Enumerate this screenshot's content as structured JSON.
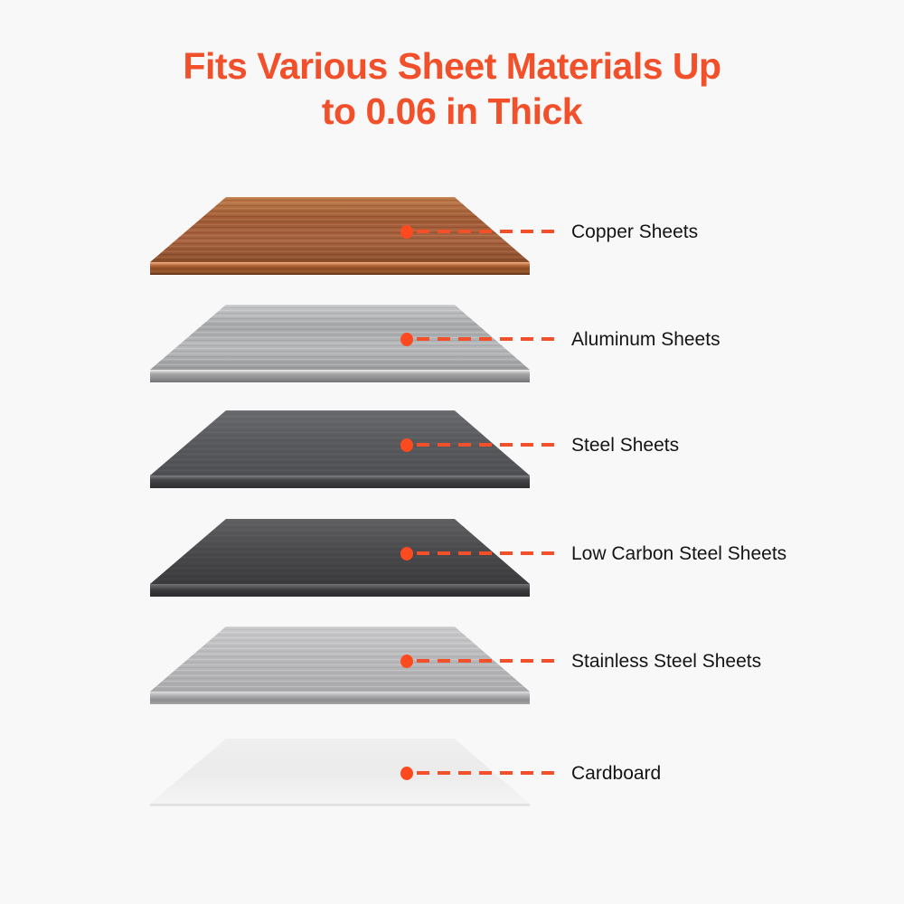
{
  "page": {
    "background": "#f8f8f8"
  },
  "title": {
    "line1": "Fits Various Sheet Materials Up",
    "line2": "to 0.06 in Thick",
    "full_text": "Fits Various Sheet Materials Up to 0.06 in Thick",
    "color": "#f1502b"
  },
  "callout": {
    "dot_color": "#ff4a1f",
    "line_color": "#f1502b",
    "label_color": "#141414"
  },
  "materials": [
    {
      "id": "copper-sheets",
      "label": "Copper Sheets",
      "face_colors": [
        "#c07b4a",
        "#a25d36",
        "#a86340",
        "#8c4e2a"
      ],
      "side_colors": [
        "#f5b285",
        "#b76b3a",
        "#8a4a24",
        "#9a5c30",
        "#5c2f15"
      ],
      "brushed_hi": 0.1,
      "brushed_lo": 0.14
    },
    {
      "id": "aluminum-sheets",
      "label": "Aluminum Sheets",
      "face_colors": [
        "#c8c9cb",
        "#a7a8aa",
        "#b8b9bb",
        "#9b9c9e"
      ],
      "side_colors": [
        "#efefef",
        "#a6a6a8",
        "#909092",
        "#737375"
      ],
      "brushed_hi": 0.2,
      "brushed_lo": 0.08
    },
    {
      "id": "steel-sheets",
      "label": "Steel Sheets",
      "face_colors": [
        "#6a6b6e",
        "#595a5d",
        "#4f5053"
      ],
      "side_colors": [
        "#808184",
        "#46474a",
        "#39393b",
        "#2f2f31"
      ],
      "brushed_hi": 0.04,
      "brushed_lo": 0.05
    },
    {
      "id": "low-carbon-steel-sheets",
      "label": "Low Carbon Steel Sheets",
      "face_colors": [
        "#606063",
        "#4a4a4d",
        "#3b3b3e"
      ],
      "side_colors": [
        "#737376",
        "#39393c",
        "#2c2c2f"
      ],
      "brushed_hi": 0.03,
      "brushed_lo": 0.04
    },
    {
      "id": "stainless-steel-sheets",
      "label": "Stainless Steel Sheets",
      "face_colors": [
        "#cacacc",
        "#b8b8ba",
        "#ababad"
      ],
      "side_colors": [
        "#dfdfe1",
        "#b0b0b2",
        "#8d8d8f",
        "#a5a5a7"
      ],
      "brushed_hi": 0.22,
      "brushed_lo": 0.05
    },
    {
      "id": "cardboard",
      "label": "Cardboard",
      "face_colors": [
        "#efeff0",
        "#ebebec",
        "#f4f4f5"
      ],
      "side_colors": [
        "#e0e0e1",
        "#e6e6e7"
      ],
      "brushed_hi": 0,
      "brushed_lo": 0
    }
  ]
}
